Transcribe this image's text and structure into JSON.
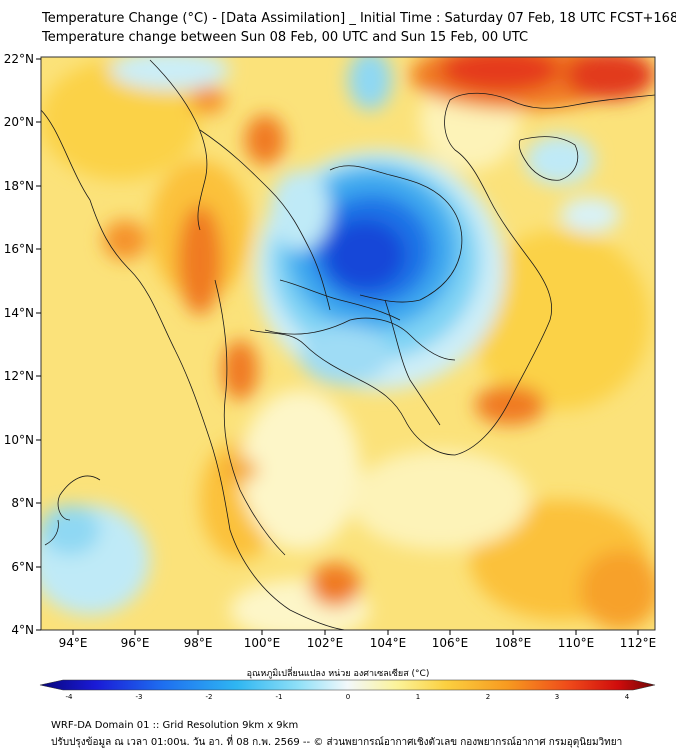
{
  "title": {
    "line1": "Temperature Change (°C) - [Data Assimilation] _ Initial Time : Saturday 07 Feb, 18 UTC FCST+168",
    "line2": "Temperature change between Sun 08 Feb, 00 UTC and Sun 15 Feb, 00 UTC"
  },
  "map": {
    "lat_labels": [
      "22°N",
      "20°N",
      "18°N",
      "16°N",
      "14°N",
      "12°N",
      "10°N",
      "8°N",
      "6°N",
      "4°N"
    ],
    "lon_labels": [
      "94°E",
      "96°E",
      "98°E",
      "100°E",
      "102°E",
      "104°E",
      "106°E",
      "108°E",
      "110°E",
      "112°E"
    ]
  },
  "colorbar": {
    "title": "อุณหภูมิเปลี่ยนแปลง หน่วย องศาเซลเซียส (°C)",
    "ticks": [
      "-4",
      "-3",
      "-2",
      "-1",
      "0",
      "1",
      "2",
      "3",
      "4"
    ],
    "min_value": -4,
    "max_value": 4,
    "colors": [
      "#08067a",
      "#1a1ad6",
      "#1e6ff0",
      "#2fb6f2",
      "#8fe0f7",
      "#f2f8fb",
      "#fbf39a",
      "#fbd040",
      "#f79a20",
      "#ef4a1a",
      "#d00c0c",
      "#6e0606"
    ]
  },
  "footer": {
    "line1": "WRF-DA Domain 01 :: Grid Resolution 9km x 9km",
    "line2": "ปรับปรุงข้อมูล ณ เวลา 01:00น. วัน อา. ที่ 08 ก.พ. 2569 -- © ส่วนพยากรณ์อากาศเชิงตัวเลข กองพยากรณ์อากาศ กรมอุตุนิยมวิทยา"
  }
}
